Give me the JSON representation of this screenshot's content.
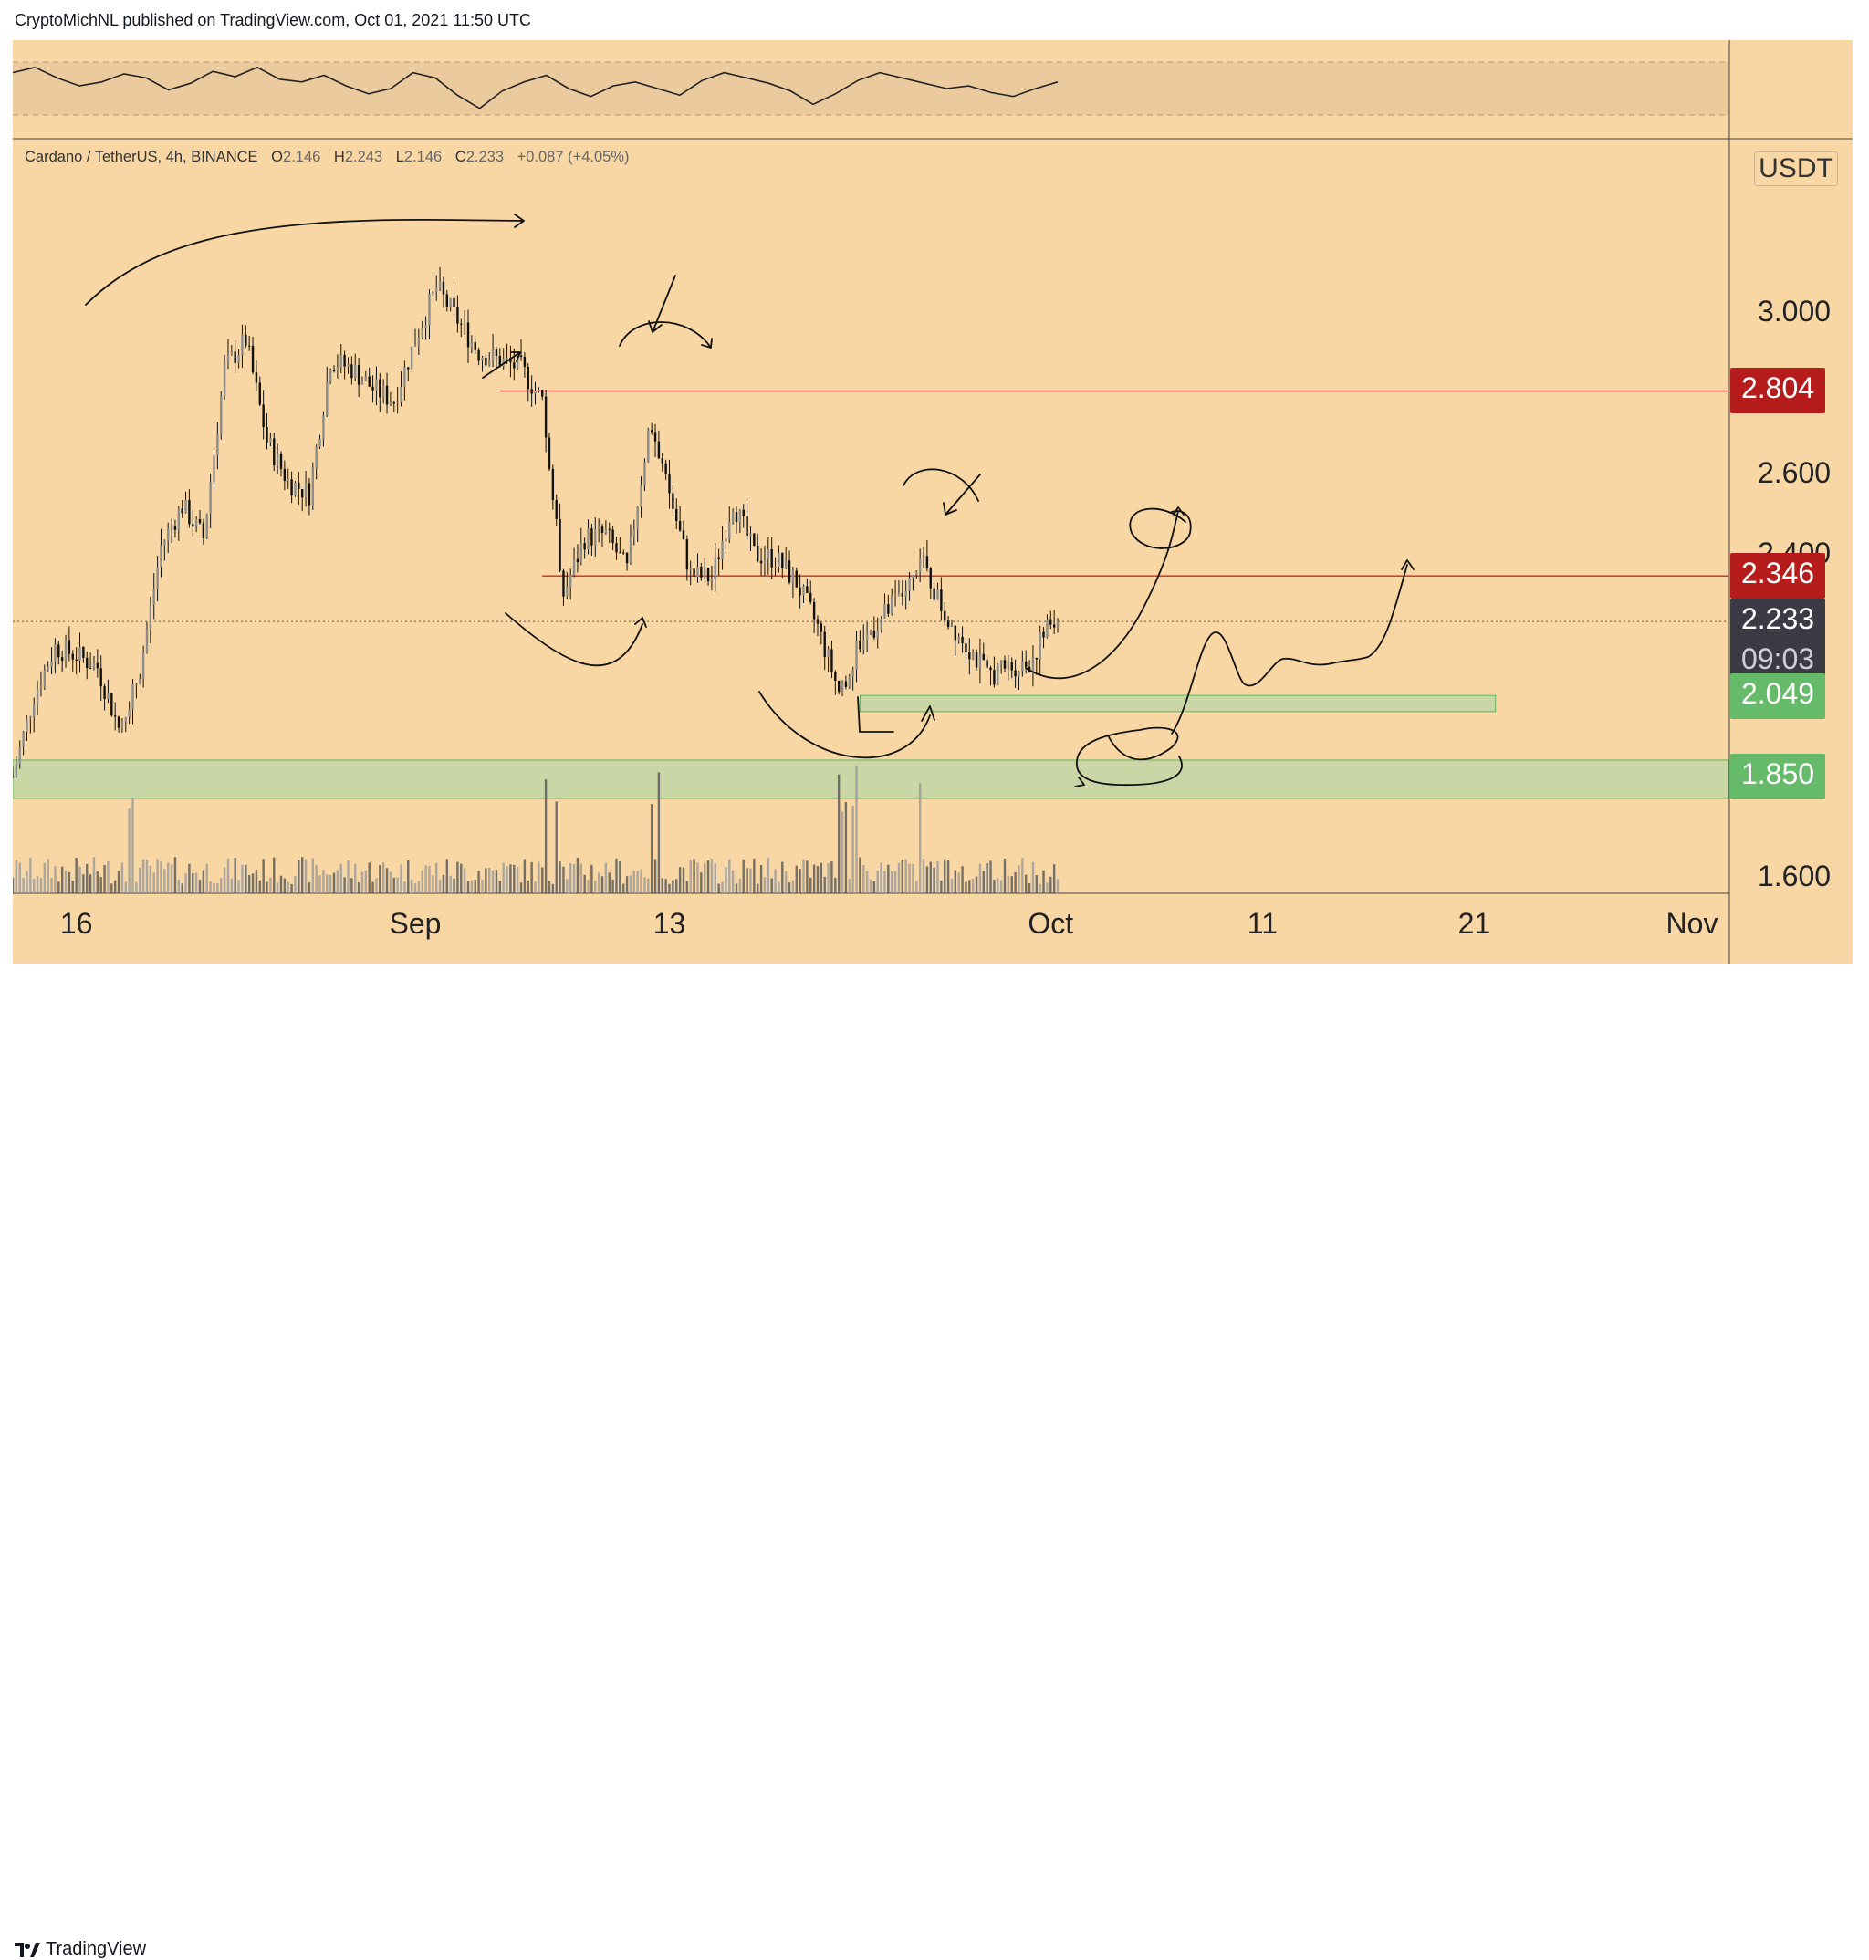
{
  "header": {
    "published_text": "CryptoMichNL published on TradingView.com, Oct 01, 2021 11:50 UTC"
  },
  "footer": {
    "brand": "TradingView"
  },
  "chart_data": {
    "type": "candlestick",
    "symbol_line": {
      "pair": "Cardano / TetherUS, 4h, BINANCE",
      "open_label": "O",
      "open": "2.146",
      "high_label": "H",
      "high": "2.243",
      "low_label": "L",
      "low": "2.146",
      "close_label": "C",
      "close": "2.233",
      "change": "+0.087 (+4.05%)"
    },
    "currency": "USDT",
    "y_axis": {
      "range": [
        1.56,
        3.3
      ],
      "ticks": [
        "3.000",
        "2.600",
        "2.400",
        "1.600"
      ]
    },
    "x_axis": {
      "ticks": [
        {
          "label": "16",
          "date": "2021-08-16"
        },
        {
          "label": "Sep",
          "date": "2021-09-01"
        },
        {
          "label": "13",
          "date": "2021-09-13"
        },
        {
          "label": "Oct",
          "date": "2021-10-01"
        },
        {
          "label": "11",
          "date": "2021-10-11"
        },
        {
          "label": "21",
          "date": "2021-10-21"
        },
        {
          "label": "Nov",
          "date": "2021-11-01"
        }
      ],
      "range": [
        "2021-08-13",
        "2021-11-02"
      ]
    },
    "price_tags": [
      {
        "label": "2.804",
        "value": 2.804,
        "color": "#b71c1c"
      },
      {
        "label": "2.346",
        "value": 2.346,
        "color": "#b71c1c"
      },
      {
        "label": "2.233",
        "value": 2.233,
        "countdown": "09:03",
        "color": "#3a3b45"
      },
      {
        "label": "2.049",
        "value": 2.049,
        "color": "#66bb6a"
      },
      {
        "label": "1.850",
        "value": 1.85,
        "color": "#66bb6a"
      }
    ],
    "horizontal_lines": [
      {
        "value": 2.804,
        "color": "#c62828",
        "from": "2021-09-05"
      },
      {
        "value": 2.346,
        "color": "#c62828",
        "from": "2021-09-07"
      }
    ],
    "zones": [
      {
        "low": 2.01,
        "high": 2.05,
        "from": "2021-09-22",
        "to": "2021-10-22",
        "color": "#a5d6a7"
      },
      {
        "low": 1.795,
        "high": 1.89,
        "from": "2021-08-13",
        "to": "2021-11-02",
        "color": "#a5d6a7"
      }
    ],
    "price_series": {
      "interval_hours": 4,
      "start": "2021-08-13",
      "anchors": [
        [
          "2021-08-13",
          1.85
        ],
        [
          "2021-08-14",
          2.05
        ],
        [
          "2021-08-15",
          2.17
        ],
        [
          "2021-08-16",
          2.15
        ],
        [
          "2021-08-17",
          2.12
        ],
        [
          "2021-08-18",
          1.97
        ],
        [
          "2021-08-19",
          2.11
        ],
        [
          "2021-08-20",
          2.42
        ],
        [
          "2021-08-21",
          2.52
        ],
        [
          "2021-08-22",
          2.44
        ],
        [
          "2021-08-23",
          2.86
        ],
        [
          "2021-08-24",
          2.93
        ],
        [
          "2021-08-25",
          2.68
        ],
        [
          "2021-08-26",
          2.58
        ],
        [
          "2021-08-27",
          2.55
        ],
        [
          "2021-08-28",
          2.88
        ],
        [
          "2021-08-29",
          2.86
        ],
        [
          "2021-08-30",
          2.81
        ],
        [
          "2021-08-31",
          2.78
        ],
        [
          "2021-09-01",
          2.93
        ],
        [
          "2021-09-02",
          3.06
        ],
        [
          "2021-09-03",
          2.98
        ],
        [
          "2021-09-04",
          2.9
        ],
        [
          "2021-09-05",
          2.88
        ],
        [
          "2021-09-06",
          2.86
        ],
        [
          "2021-09-07",
          2.78
        ],
        [
          "2021-09-08",
          2.3
        ],
        [
          "2021-09-09",
          2.44
        ],
        [
          "2021-09-10",
          2.45
        ],
        [
          "2021-09-11",
          2.36
        ],
        [
          "2021-09-12",
          2.7
        ],
        [
          "2021-09-13",
          2.55
        ],
        [
          "2021-09-14",
          2.35
        ],
        [
          "2021-09-15",
          2.34
        ],
        [
          "2021-09-16",
          2.53
        ],
        [
          "2021-09-17",
          2.4
        ],
        [
          "2021-09-18",
          2.39
        ],
        [
          "2021-09-19",
          2.33
        ],
        [
          "2021-09-20",
          2.22
        ],
        [
          "2021-09-21",
          2.06
        ],
        [
          "2021-09-22",
          2.18
        ],
        [
          "2021-09-23",
          2.24
        ],
        [
          "2021-09-24",
          2.3
        ],
        [
          "2021-09-25",
          2.37
        ],
        [
          "2021-09-26",
          2.25
        ],
        [
          "2021-09-27",
          2.18
        ],
        [
          "2021-09-28",
          2.1
        ],
        [
          "2021-09-29",
          2.12
        ],
        [
          "2021-09-30",
          2.13
        ],
        [
          "2021-10-01",
          2.233
        ]
      ],
      "last_close": 2.233
    },
    "volume_series": {
      "style": "bars at bottom of pane",
      "spikes": [
        "2021-08-18",
        "2021-09-07",
        "2021-09-12",
        "2021-09-21",
        "2021-09-24"
      ]
    },
    "rsi_pane": {
      "band": [
        30,
        70
      ],
      "values": [
        62,
        66,
        58,
        52,
        55,
        61,
        58,
        49,
        54,
        63,
        59,
        66,
        57,
        55,
        60,
        52,
        46,
        50,
        62,
        58,
        45,
        35,
        48,
        55,
        60,
        50,
        44,
        52,
        55,
        50,
        45,
        56,
        62,
        58,
        54,
        48,
        38,
        46,
        56,
        62,
        58,
        54,
        50,
        52,
        47,
        44,
        50,
        55
      ]
    },
    "annotations": "freehand trend arrows and curves projecting a bounce off the green support zones"
  }
}
